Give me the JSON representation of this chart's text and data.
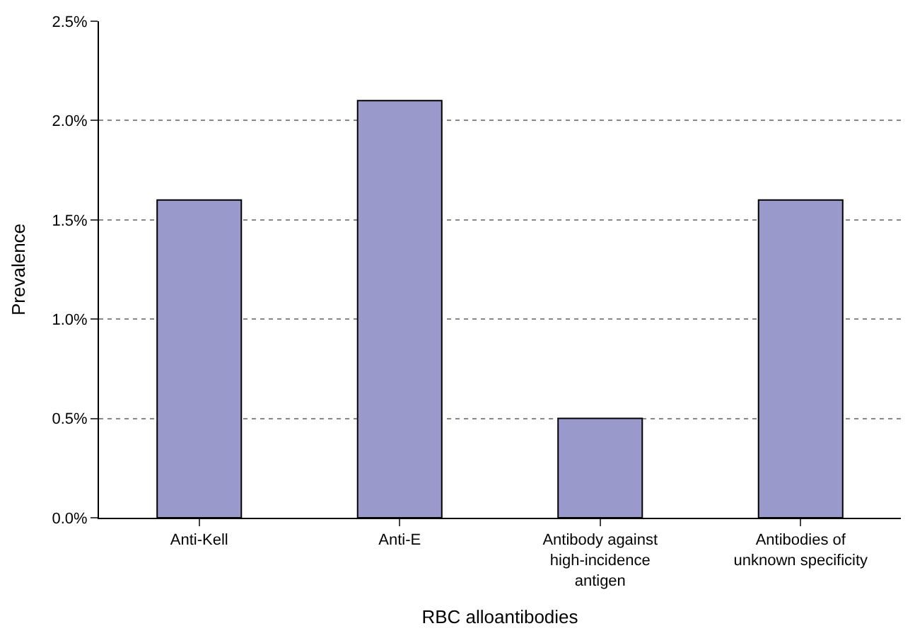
{
  "chart_data": {
    "type": "bar",
    "xlabel": "RBC alloantibodies",
    "ylabel": "Prevalence",
    "categories": [
      "Anti-Kell",
      "Anti-E",
      "Antibody against\nhigh-incidence\nantigen",
      "Antibodies of\nunknown specificity"
    ],
    "values": [
      1.6,
      2.1,
      0.5,
      1.6
    ],
    "color": "#9999cc",
    "ylim": [
      0,
      2.5
    ],
    "yticks": [
      {
        "value": 0,
        "label": "0.0%"
      },
      {
        "value": 0.5,
        "label": "0.5%"
      },
      {
        "value": 1.0,
        "label": "1.0%"
      },
      {
        "value": 1.5,
        "label": "1.5%"
      },
      {
        "value": 2.0,
        "label": "2.0%"
      },
      {
        "value": 2.5,
        "label": "2.5%"
      }
    ],
    "grid": "y",
    "legend": false
  }
}
